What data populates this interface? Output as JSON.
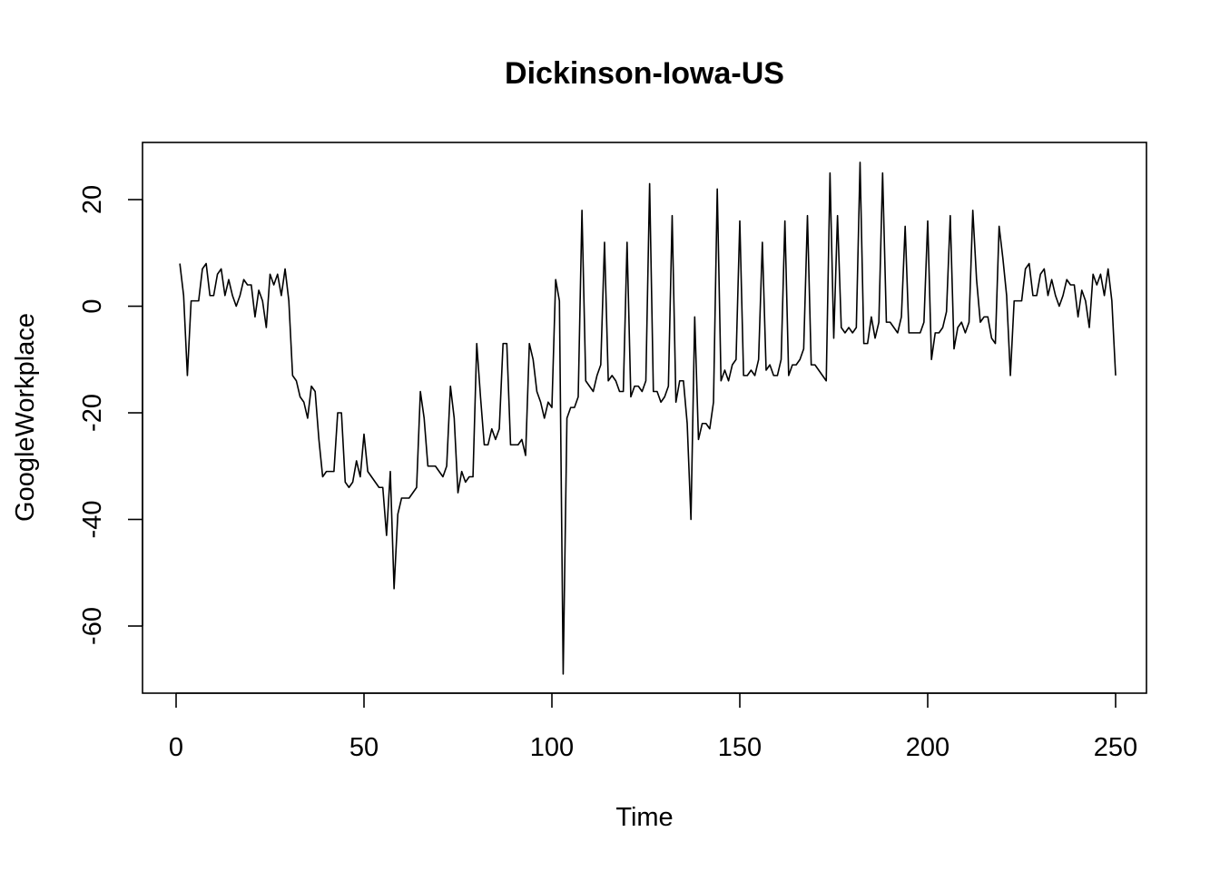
{
  "chart_data": {
    "type": "line",
    "title": "Dickinson-Iowa-US",
    "xlabel": "Time",
    "ylabel": "GoogleWorkplace",
    "xlim": [
      0,
      250
    ],
    "ylim": [
      -70,
      27
    ],
    "x_ticks": [
      0,
      50,
      100,
      150,
      200,
      250
    ],
    "x_tick_labels": [
      "0",
      "50",
      "100",
      "150",
      "200",
      "250"
    ],
    "y_ticks": [
      20,
      0,
      -20,
      -40,
      -60
    ],
    "y_tick_labels": [
      "20",
      "0",
      "-20",
      "-40",
      "-60"
    ],
    "grid": false,
    "legend": "none",
    "line_color": "#000000",
    "x_start": 1,
    "values": [
      8,
      2,
      -13,
      1,
      1,
      1,
      7,
      8,
      2,
      2,
      6,
      7,
      2,
      5,
      2,
      0,
      2,
      5,
      4,
      4,
      -2,
      3,
      1,
      -4,
      6,
      4,
      6,
      2,
      7,
      1,
      -13,
      -14,
      -17,
      -18,
      -21,
      -15,
      -16,
      -25,
      -32,
      -31,
      -31,
      -31,
      -20,
      -20,
      -33,
      -34,
      -33,
      -29,
      -32,
      -24,
      -31,
      -32,
      -33,
      -34,
      -34,
      -43,
      -31,
      -53,
      -39,
      -36,
      -36,
      -36,
      -35,
      -34,
      -16,
      -21,
      -30,
      -30,
      -30,
      -31,
      -32,
      -30,
      -15,
      -21,
      -35,
      -31,
      -33,
      -32,
      -32,
      -7,
      -17,
      -26,
      -26,
      -23,
      -25,
      -23,
      -7,
      -7,
      -26,
      -26,
      -26,
      -25,
      -28,
      -7,
      -10,
      -16,
      -18,
      -21,
      -18,
      -19,
      5,
      1,
      -69,
      -21,
      -19,
      -19,
      -17,
      18,
      -14,
      -15,
      -16,
      -13,
      -11,
      12,
      -14,
      -13,
      -14,
      -16,
      -16,
      12,
      -17,
      -15,
      -15,
      -16,
      -14,
      23,
      -16,
      -16,
      -18,
      -17,
      -15,
      17,
      -18,
      -14,
      -14,
      -22,
      -40,
      -2,
      -25,
      -22,
      -22,
      -23,
      -18,
      22,
      -14,
      -12,
      -14,
      -11,
      -10,
      16,
      -13,
      -13,
      -12,
      -13,
      -10,
      12,
      -12,
      -11,
      -13,
      -13,
      -10,
      16,
      -13,
      -11,
      -11,
      -10,
      -8,
      17,
      -11,
      -11,
      -12,
      -13,
      -14,
      25,
      -6,
      17,
      -4,
      -5,
      -4,
      -5,
      -4,
      27,
      -7,
      -7,
      -2,
      -6,
      -3,
      25,
      -3,
      -3,
      -4,
      -5,
      -2,
      15,
      -5,
      -5,
      -5,
      -5,
      -3,
      16,
      -10,
      -5,
      -5,
      -4,
      -1,
      17,
      -8,
      -4,
      -3,
      -5,
      -3,
      18,
      5,
      -3,
      -2,
      -2,
      -6,
      -7,
      15,
      9,
      2,
      -13,
      1,
      1,
      1,
      7,
      8,
      2,
      2,
      6,
      7,
      2,
      5,
      2,
      0,
      2,
      5,
      4,
      4,
      -2,
      3,
      1,
      -4,
      6,
      4,
      6,
      2,
      7,
      1,
      -13
    ]
  }
}
